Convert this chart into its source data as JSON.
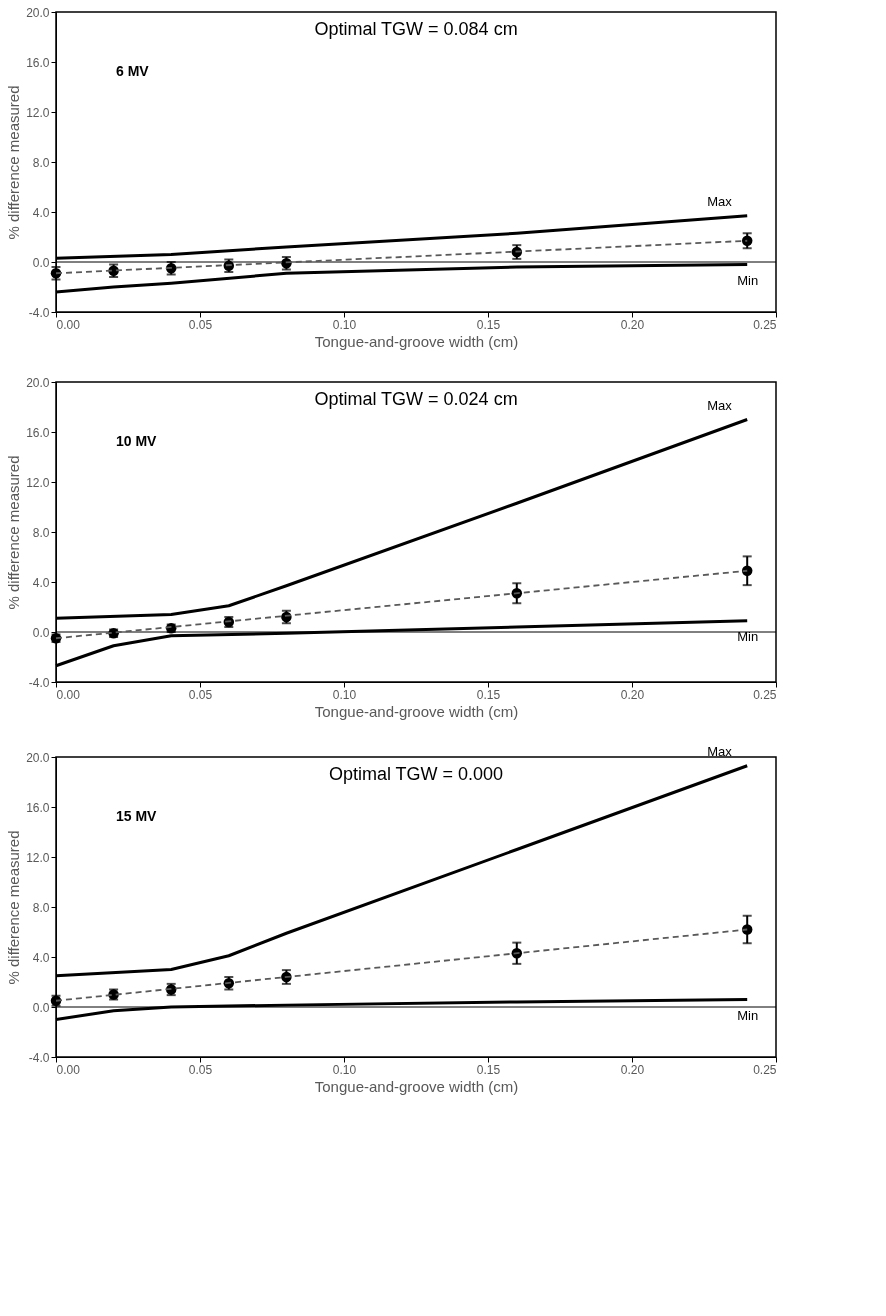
{
  "chart_data": [
    {
      "type": "line",
      "title": "Optimal TGW = 0.084 cm",
      "annotations": [
        "6 MV"
      ],
      "xlabel": "Tongue-and-groove width (cm)",
      "ylabel": "% difference measured",
      "xlim": [
        0,
        0.25
      ],
      "xticks": [
        {
          "value": 0,
          "label": "0.00"
        },
        {
          "value": 0.05,
          "label": "0.05"
        },
        {
          "value": 0.1,
          "label": "0.10"
        },
        {
          "value": 0.15,
          "label": "0.15"
        },
        {
          "value": 0.2,
          "label": "0.20"
        },
        {
          "value": 0.25,
          "label": "0.25"
        }
      ],
      "ylim": [
        -4,
        20
      ],
      "yticks": [
        {
          "value": -4,
          "label": "-4.0"
        },
        {
          "value": 0,
          "label": "0.0"
        },
        {
          "value": 4,
          "label": "4.0"
        },
        {
          "value": 8,
          "label": "8.0"
        },
        {
          "value": 12,
          "label": "12.0"
        },
        {
          "value": 16,
          "label": "16.0"
        },
        {
          "value": 20,
          "label": "20.0"
        }
      ],
      "grid": false,
      "ref_lines": [
        {
          "axis": "y",
          "value": 0,
          "color": "#000000"
        }
      ],
      "series": [
        {
          "type": "scatter",
          "marker": "circle",
          "color": "#000000",
          "x": [
            0,
            0.02,
            0.04,
            0.06,
            0.08,
            0.16,
            0.24
          ],
          "values": [
            -0.9,
            -0.7,
            -0.5,
            -0.3,
            -0.1,
            0.8,
            1.7
          ],
          "errors": [
            0.5,
            0.5,
            0.5,
            0.5,
            0.5,
            0.55,
            0.6
          ]
        },
        {
          "type": "line",
          "line_style": "dashed",
          "color": "#595959",
          "x": [
            0,
            0.24
          ],
          "values": [
            -0.9,
            1.7
          ]
        },
        {
          "name": "Max",
          "line_style": "solid",
          "color": "#000000",
          "x": [
            0,
            0.04,
            0.08,
            0.16,
            0.24
          ],
          "values": [
            0.3,
            0.6,
            1.2,
            2.3,
            3.7
          ]
        },
        {
          "name": "Min",
          "line_style": "solid",
          "color": "#000000",
          "x": [
            0,
            0.02,
            0.04,
            0.08,
            0.16,
            0.24
          ],
          "values": [
            -2.4,
            -2.0,
            -1.7,
            -0.9,
            -0.4,
            -0.2
          ]
        }
      ]
    },
    {
      "type": "line",
      "title": "Optimal TGW = 0.024 cm",
      "annotations": [
        "10 MV"
      ],
      "xlabel": "Tongue-and-groove width (cm)",
      "ylabel": "% difference measured",
      "xlim": [
        0,
        0.25
      ],
      "xticks": [
        {
          "value": 0,
          "label": "0.00"
        },
        {
          "value": 0.05,
          "label": "0.05"
        },
        {
          "value": 0.1,
          "label": "0.10"
        },
        {
          "value": 0.15,
          "label": "0.15"
        },
        {
          "value": 0.2,
          "label": "0.20"
        },
        {
          "value": 0.25,
          "label": "0.25"
        }
      ],
      "ylim": [
        -4,
        20
      ],
      "yticks": [
        {
          "value": -4,
          "label": "-4.0"
        },
        {
          "value": 0,
          "label": "0.0"
        },
        {
          "value": 4,
          "label": "4.0"
        },
        {
          "value": 8,
          "label": "8.0"
        },
        {
          "value": 12,
          "label": "12.0"
        },
        {
          "value": 16,
          "label": "16.0"
        },
        {
          "value": 20,
          "label": "20.0"
        }
      ],
      "grid": false,
      "ref_lines": [
        {
          "axis": "y",
          "value": 0,
          "color": "#000000"
        }
      ],
      "series": [
        {
          "type": "scatter",
          "marker": "circle",
          "color": "#000000",
          "x": [
            0,
            0.02,
            0.04,
            0.06,
            0.08,
            0.16,
            0.24
          ],
          "values": [
            -0.5,
            -0.1,
            0.3,
            0.8,
            1.2,
            3.1,
            4.9
          ],
          "errors": [
            0.3,
            0.3,
            0.3,
            0.4,
            0.5,
            0.8,
            1.15
          ]
        },
        {
          "type": "line",
          "line_style": "dashed",
          "color": "#595959",
          "x": [
            0,
            0.24
          ],
          "values": [
            -0.5,
            4.9
          ]
        },
        {
          "name": "Max",
          "line_style": "solid",
          "color": "#000000",
          "x": [
            0,
            0.04,
            0.06,
            0.08,
            0.16,
            0.24
          ],
          "values": [
            1.1,
            1.4,
            2.1,
            3.7,
            10.3,
            17.0
          ]
        },
        {
          "name": "Min",
          "line_style": "solid",
          "color": "#000000",
          "x": [
            0,
            0.02,
            0.04,
            0.08,
            0.16,
            0.24
          ],
          "values": [
            -2.7,
            -1.1,
            -0.3,
            -0.1,
            0.4,
            0.9
          ]
        }
      ]
    },
    {
      "type": "line",
      "title": "Optimal TGW = 0.000",
      "annotations": [
        "15 MV"
      ],
      "xlabel": "Tongue-and-groove width (cm)",
      "ylabel": "% difference measured",
      "xlim": [
        0,
        0.25
      ],
      "xticks": [
        {
          "value": 0,
          "label": "0.00"
        },
        {
          "value": 0.05,
          "label": "0.05"
        },
        {
          "value": 0.1,
          "label": "0.10"
        },
        {
          "value": 0.15,
          "label": "0.15"
        },
        {
          "value": 0.2,
          "label": "0.20"
        },
        {
          "value": 0.25,
          "label": "0.25"
        }
      ],
      "ylim": [
        -4,
        20
      ],
      "yticks": [
        {
          "value": -4,
          "label": "-4.0"
        },
        {
          "value": 0,
          "label": "0.0"
        },
        {
          "value": 4,
          "label": "4.0"
        },
        {
          "value": 8,
          "label": "8.0"
        },
        {
          "value": 12,
          "label": "12.0"
        },
        {
          "value": 16,
          "label": "16.0"
        },
        {
          "value": 20,
          "label": "20.0"
        }
      ],
      "grid": false,
      "ref_lines": [
        {
          "axis": "y",
          "value": 0,
          "color": "#000000"
        }
      ],
      "series": [
        {
          "type": "scatter",
          "marker": "circle",
          "color": "#000000",
          "x": [
            0,
            0.02,
            0.04,
            0.06,
            0.08,
            0.16,
            0.24
          ],
          "values": [
            0.5,
            1.0,
            1.4,
            1.9,
            2.4,
            4.3,
            6.2
          ],
          "errors": [
            0.4,
            0.4,
            0.45,
            0.5,
            0.55,
            0.85,
            1.1
          ]
        },
        {
          "type": "line",
          "line_style": "dashed",
          "color": "#595959",
          "x": [
            0,
            0.24
          ],
          "values": [
            0.5,
            6.2
          ]
        },
        {
          "name": "Max",
          "line_style": "solid",
          "color": "#000000",
          "x": [
            0,
            0.04,
            0.06,
            0.08,
            0.16,
            0.24
          ],
          "values": [
            2.5,
            3.0,
            4.1,
            5.9,
            12.6,
            19.3
          ]
        },
        {
          "name": "Min",
          "line_style": "solid",
          "color": "#000000",
          "x": [
            0,
            0.02,
            0.04,
            0.08,
            0.16,
            0.24
          ],
          "values": [
            -1.0,
            -0.3,
            0.0,
            0.15,
            0.4,
            0.6
          ]
        }
      ]
    }
  ]
}
